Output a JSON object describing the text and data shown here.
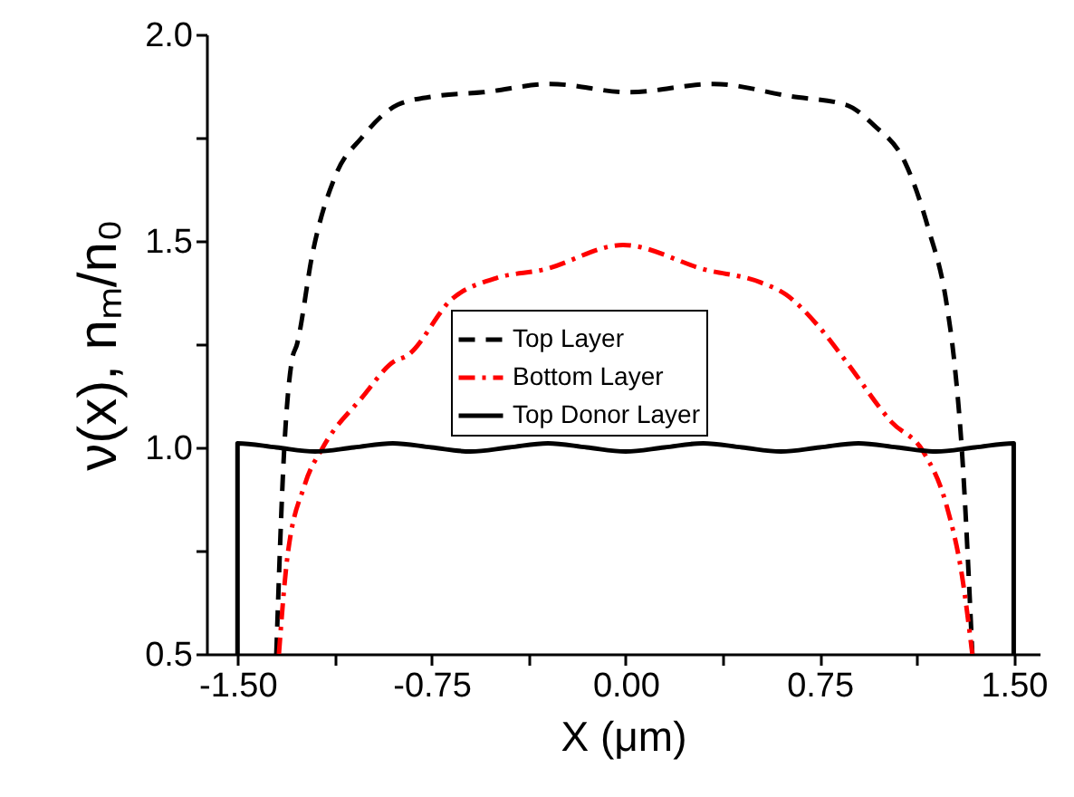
{
  "chart_data": {
    "type": "line",
    "xlabel": "X (μm)",
    "ylabel": "ν(x), nₘ/n₀",
    "xlim": [
      -1.62,
      1.6
    ],
    "xticks": [
      {
        "value": -1.5,
        "label": "-1.50"
      },
      {
        "value": -1.125,
        "label": null
      },
      {
        "value": -0.75,
        "label": "-0.75"
      },
      {
        "value": -0.375,
        "label": null
      },
      {
        "value": 0,
        "label": "0.00"
      },
      {
        "value": 0.375,
        "label": null
      },
      {
        "value": 0.75,
        "label": "0.75"
      },
      {
        "value": 1.125,
        "label": null
      },
      {
        "value": 1.5,
        "label": "1.50"
      }
    ],
    "ylim": [
      0.5,
      2.0
    ],
    "yticks": [
      {
        "value": 0.5,
        "label": "0.5"
      },
      {
        "value": 0.75,
        "label": null
      },
      {
        "value": 1.0,
        "label": "1.0"
      },
      {
        "value": 1.25,
        "label": null
      },
      {
        "value": 1.5,
        "label": "1.5"
      },
      {
        "value": 1.75,
        "label": null
      },
      {
        "value": 2.0,
        "label": "2.0"
      }
    ],
    "grid": false,
    "legend": "center",
    "marker": "none",
    "series": [
      {
        "name": "Top Layer",
        "color": "#000000",
        "line_style": "dashed",
        "x": [
          -1.35,
          -1.32,
          -1.29,
          -1.27,
          -1.21,
          -1.12,
          -1.02,
          -0.88,
          -0.74,
          -0.55,
          -0.29,
          0.01,
          0.34,
          0.64,
          0.85,
          0.96,
          1.08,
          1.17,
          1.24,
          1.27,
          1.3,
          1.34
        ],
        "values": [
          0.5,
          0.99,
          1.21,
          1.25,
          1.47,
          1.66,
          1.75,
          1.83,
          1.85,
          1.86,
          1.88,
          1.86,
          1.88,
          1.85,
          1.83,
          1.78,
          1.69,
          1.53,
          1.35,
          1.21,
          0.99,
          0.5
        ]
      },
      {
        "name": "Bottom Layer",
        "color": "#ff0000",
        "line_style": "dashdot",
        "x": [
          -1.34,
          -1.31,
          -1.24,
          -1.17,
          -1.02,
          -0.89,
          -0.85,
          -0.67,
          -0.5,
          -0.32,
          -0.01,
          0.31,
          0.52,
          0.62,
          0.75,
          0.85,
          1.03,
          1.15,
          1.24,
          1.3,
          1.34
        ],
        "values": [
          0.5,
          0.72,
          0.91,
          1.0,
          1.12,
          1.21,
          1.22,
          1.36,
          1.41,
          1.43,
          1.49,
          1.43,
          1.4,
          1.37,
          1.29,
          1.21,
          1.06,
          0.99,
          0.86,
          0.69,
          0.5
        ]
      },
      {
        "name": "Top Donor Layer",
        "color": "#000000",
        "line_style": "solid",
        "x": [
          -1.5,
          -1.5,
          -1.35,
          -1.2,
          -1.05,
          -0.9,
          -0.75,
          -0.6,
          -0.45,
          -0.3,
          -0.15,
          0,
          0.15,
          0.3,
          0.45,
          0.6,
          0.75,
          0.9,
          1.05,
          1.2,
          1.35,
          1.5,
          1.5
        ],
        "values": [
          0.5,
          1.01,
          1.0,
          0.99,
          1.0,
          1.01,
          1.0,
          0.99,
          1.0,
          1.01,
          1.0,
          0.99,
          1.0,
          1.01,
          1.0,
          0.99,
          1.0,
          1.01,
          1.0,
          0.99,
          1.0,
          1.01,
          0.5
        ]
      }
    ]
  }
}
